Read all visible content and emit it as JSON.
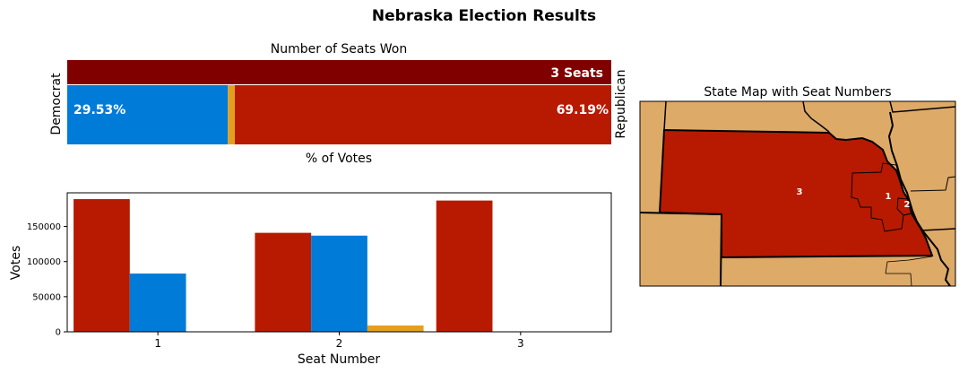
{
  "figure": {
    "title": "Nebraska Election Results"
  },
  "colors": {
    "republican": "#b71a00",
    "democrat": "#007bd8",
    "other": "#e3a020",
    "seats": "#800000",
    "land": "#deaa68",
    "outline": "#000000"
  },
  "chart_data": [
    {
      "type": "bar",
      "orientation": "horizontal-stacked",
      "title": "Number of Seats Won",
      "xlabel": "% of Votes",
      "left_label": "Democrat",
      "right_label": "Republican",
      "seats_label": "3 Seats",
      "seats_won": 3,
      "xlim": [
        0,
        100
      ],
      "series": [
        {
          "name": "Democrat",
          "value": 29.53,
          "label": "29.53%"
        },
        {
          "name": "Other",
          "value": 1.28,
          "label": ""
        },
        {
          "name": "Republican",
          "value": 69.19,
          "label": "69.19%"
        }
      ]
    },
    {
      "type": "bar",
      "title": "",
      "xlabel": "Seat Number",
      "ylabel": "Votes",
      "categories": [
        "1",
        "2",
        "3"
      ],
      "ylim": [
        0,
        198000
      ],
      "yticks": [
        "0",
        "50000",
        "100000",
        "150000"
      ],
      "series": [
        {
          "party": "Republican",
          "values": [
            189000,
            141000,
            187000
          ]
        },
        {
          "party": "Democrat",
          "values": [
            83000,
            137000,
            0
          ]
        },
        {
          "party": "Other",
          "values": [
            0,
            9000,
            0
          ]
        }
      ]
    },
    {
      "type": "map",
      "title": "State Map with Seat Numbers",
      "seat_labels": [
        "3",
        "1",
        "2"
      ]
    }
  ]
}
